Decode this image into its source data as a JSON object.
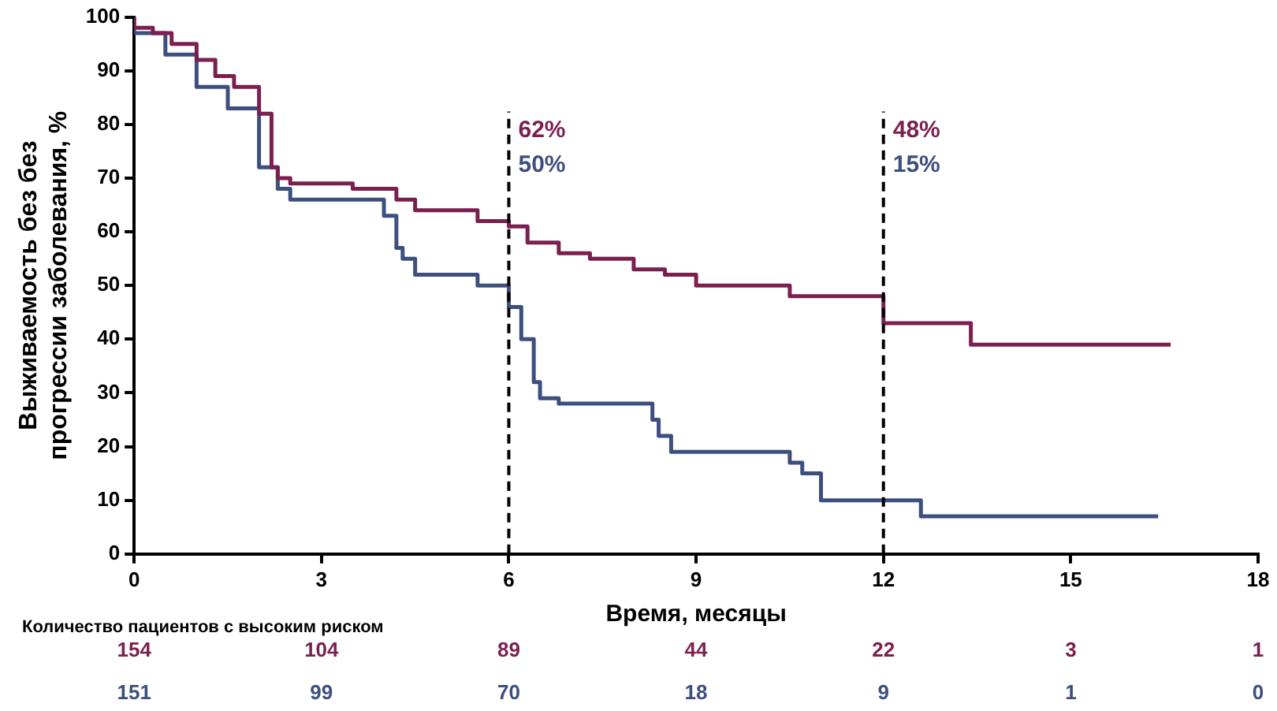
{
  "chart_data": {
    "type": "step",
    "xlabel": "Время, месяцы",
    "ylabel": "Выживаемость без без\nпрогрессии заболевания, %",
    "xlim": [
      0,
      18
    ],
    "xticks": [
      0,
      3,
      6,
      9,
      12,
      15,
      18
    ],
    "ylim": [
      0,
      100
    ],
    "yticks": [
      0,
      10,
      20,
      30,
      40,
      50,
      60,
      70,
      80,
      90,
      100
    ],
    "grid": false,
    "legend": false,
    "marker": "none",
    "line_style": "solid",
    "series": [
      {
        "color": "#7b1f4f",
        "x": [
          0,
          0.3,
          0.6,
          1,
          1.3,
          1.6,
          2,
          2.2,
          2.3,
          2.5,
          3.5,
          4.2,
          4.5,
          5.5,
          6,
          6.3,
          6.8,
          7.3,
          8,
          8.5,
          9,
          10.5,
          10.6,
          12,
          13.4,
          14.5,
          16.6
        ],
        "values": [
          100,
          98,
          97,
          95,
          92,
          89,
          87,
          82,
          72,
          70,
          69,
          68,
          66,
          64,
          62,
          61,
          58,
          56,
          55,
          53,
          52,
          50,
          48,
          48,
          43,
          39,
          39
        ]
      },
      {
        "color": "#3d4f7f",
        "x": [
          0,
          0.5,
          1,
          1.5,
          2,
          2.3,
          2.5,
          4,
          4.2,
          4.3,
          4.5,
          5.5,
          6,
          6.2,
          6.4,
          6.5,
          6.8,
          8.3,
          8.4,
          8.6,
          10.5,
          10.7,
          11,
          12.6,
          14,
          16.4
        ],
        "values": [
          100,
          97,
          93,
          87,
          83,
          72,
          68,
          66,
          63,
          57,
          55,
          52,
          50,
          46,
          40,
          32,
          29,
          28,
          25,
          22,
          19,
          17,
          15,
          10,
          7,
          7
        ]
      }
    ],
    "ref_lines": [
      {
        "axis": "x",
        "value": 6,
        "line_style": "dashed",
        "color": "#000000"
      },
      {
        "axis": "x",
        "value": 12,
        "line_style": "dashed",
        "color": "#000000"
      }
    ],
    "annotations": [
      "Количество пациентов с высоким риском",
      "62%",
      "50%",
      "48%",
      "15%",
      "154",
      "104",
      "89",
      "44",
      "22",
      "3",
      "1",
      "151",
      "99",
      "70",
      "18",
      "9",
      "1",
      "0"
    ]
  }
}
